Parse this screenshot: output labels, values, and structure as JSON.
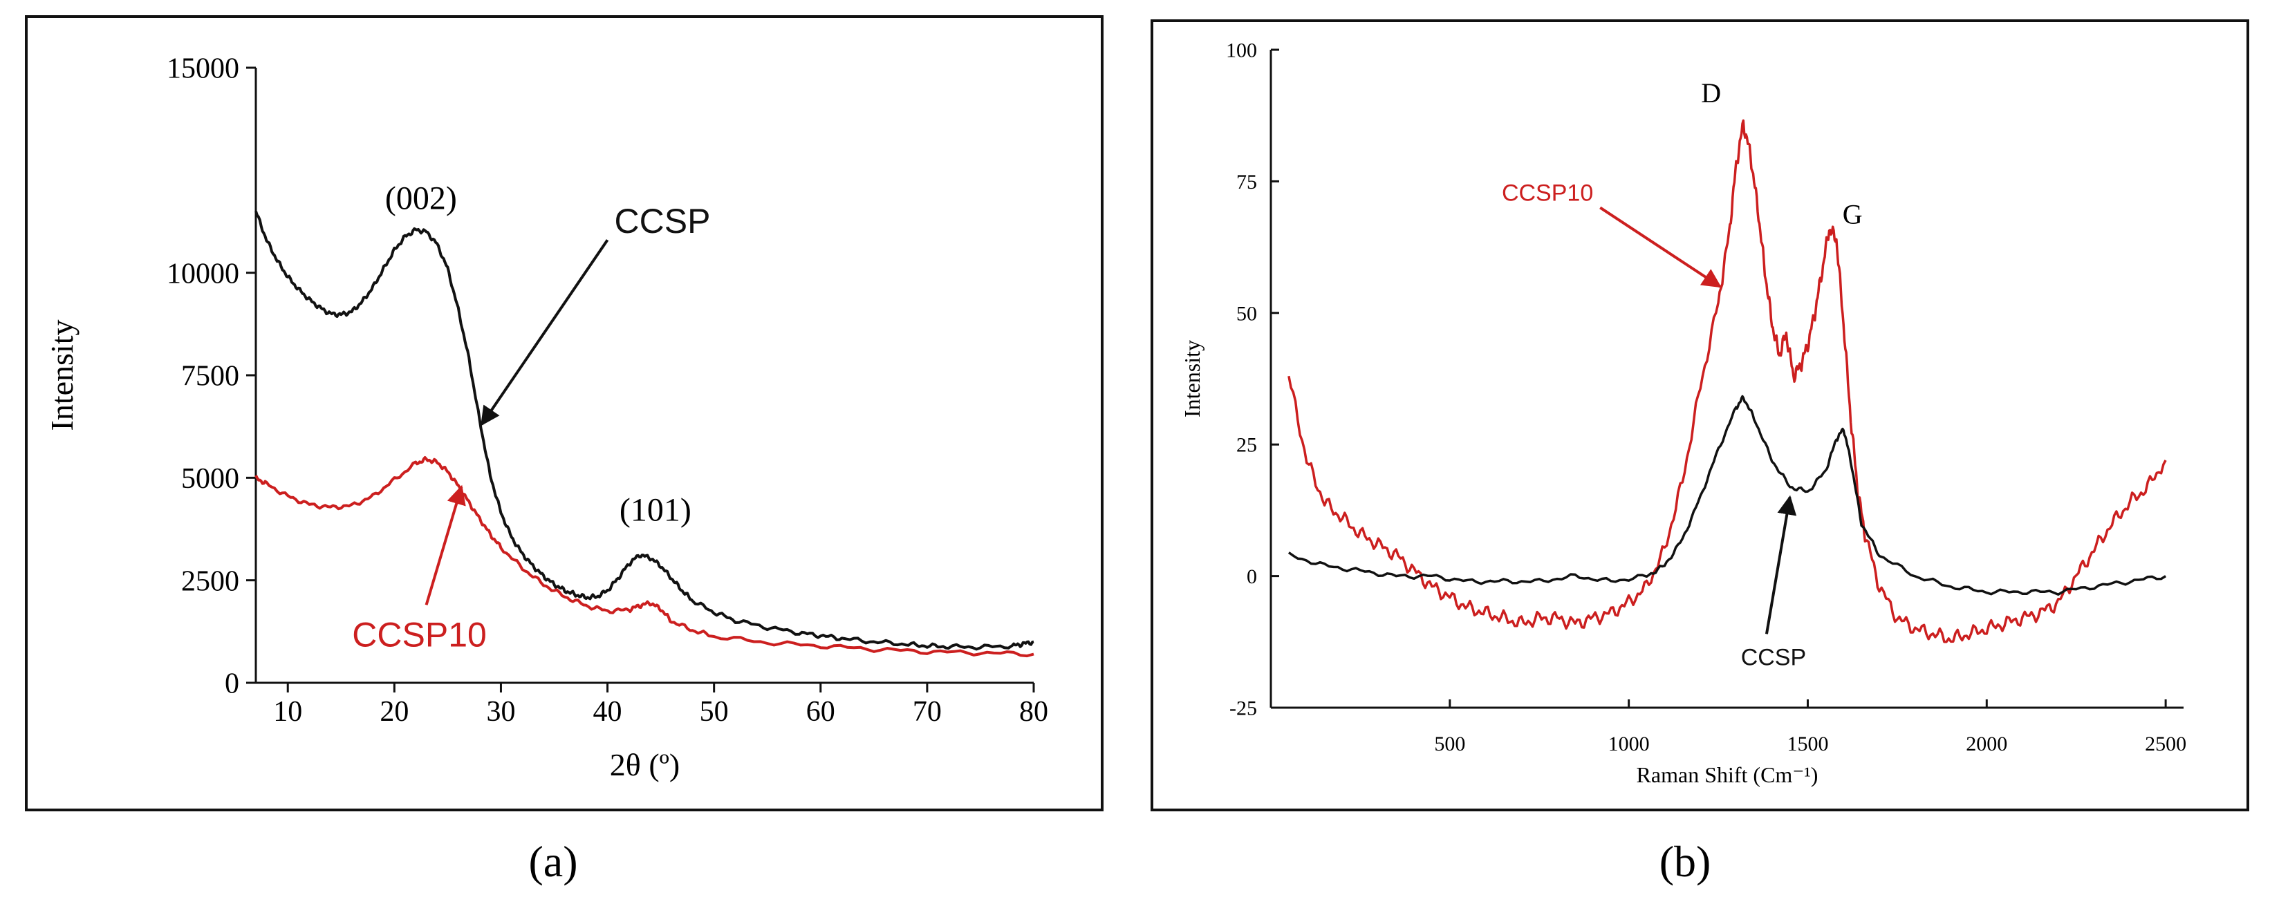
{
  "panels": [
    {
      "caption": "(a)",
      "colors": {
        "series1": "#111111",
        "series2": "#cc1f1f",
        "axis": "#111111"
      },
      "chart_data": {
        "type": "line",
        "title": "",
        "xlabel": "2θ (º)",
        "ylabel": "Intensity",
        "xlim": [
          7,
          80
        ],
        "ylim": [
          0,
          15000
        ],
        "xticks": [
          10,
          20,
          30,
          40,
          50,
          60,
          70,
          80
        ],
        "yticks": [
          0,
          2500,
          5000,
          7500,
          10000,
          15000
        ],
        "series": [
          {
            "name": "CCSP",
            "x": [
              7,
              8,
              9,
              10,
              11,
              12,
              13,
              14,
              15,
              16,
              17,
              18,
              19,
              20,
              21,
              22,
              23,
              24,
              25,
              26,
              27,
              28,
              29,
              30,
              31,
              32,
              33,
              34,
              35,
              36,
              37,
              38,
              39,
              40,
              41,
              42,
              43,
              44,
              45,
              46,
              47,
              48,
              50,
              52,
              55,
              58,
              60,
              62,
              65,
              68,
              70,
              72,
              75,
              78,
              79,
              80
            ],
            "y": [
              11500,
              10800,
              10300,
              9900,
              9600,
              9350,
              9150,
              9000,
              8980,
              9050,
              9300,
              9650,
              10100,
              10550,
              10880,
              11050,
              11000,
              10700,
              10100,
              9100,
              7900,
              6400,
              5050,
              4150,
              3550,
              3150,
              2850,
              2600,
              2400,
              2250,
              2150,
              2080,
              2100,
              2250,
              2550,
              2900,
              3120,
              3050,
              2850,
              2550,
              2250,
              2000,
              1720,
              1520,
              1350,
              1220,
              1150,
              1080,
              1000,
              940,
              900,
              880,
              870,
              900,
              950,
              1000
            ]
          },
          {
            "name": "CCSP10",
            "x": [
              7,
              8,
              10,
              12,
              14,
              16,
              18,
              20,
              22,
              23,
              24,
              25,
              26,
              27,
              28,
              29,
              30,
              32,
              34,
              36,
              38,
              40,
              42,
              43,
              44,
              45,
              46,
              48,
              50,
              55,
              60,
              65,
              70,
              75,
              80
            ],
            "y": [
              5000,
              4850,
              4550,
              4350,
              4280,
              4320,
              4550,
              4950,
              5350,
              5450,
              5380,
              5150,
              4800,
              4400,
              4000,
              3620,
              3300,
              2800,
              2400,
              2100,
              1880,
              1750,
              1780,
              1880,
              1950,
              1800,
              1500,
              1280,
              1130,
              980,
              900,
              820,
              760,
              730,
              700
            ]
          }
        ],
        "annotations": [
          {
            "text": "(002)",
            "x": 22.5,
            "y": 11550
          },
          {
            "text": "(101)",
            "x": 44.5,
            "y": 3950
          },
          {
            "text": "CCSP",
            "label_x": 40,
            "label_y": 10800,
            "point_x": 28.2,
            "point_y": 6300,
            "series": "CCSP"
          },
          {
            "text": "CCSP10",
            "label_x": 23,
            "label_y": 1900,
            "point_x": 26.3,
            "point_y": 4780,
            "series": "CCSP10"
          }
        ]
      }
    },
    {
      "caption": "(b)",
      "colors": {
        "series1": "#111111",
        "series2": "#cc1f1f",
        "axis": "#111111"
      },
      "chart_data": {
        "type": "line",
        "title": "",
        "xlabel": "Raman Shift (Cm⁻¹)",
        "ylabel": "Intensity",
        "xlim": [
          0,
          2550
        ],
        "ylim": [
          -25,
          100
        ],
        "xticks": [
          500,
          1000,
          1500,
          2000,
          2500
        ],
        "yticks": [
          -25,
          0,
          25,
          50,
          75,
          100
        ],
        "series": [
          {
            "name": "CCSP10",
            "x": [
              50,
              100,
              150,
              200,
              250,
              300,
              350,
              400,
              450,
              500,
              550,
              600,
              650,
              700,
              750,
              800,
              850,
              900,
              950,
              1000,
              1050,
              1100,
              1150,
              1200,
              1250,
              1280,
              1300,
              1320,
              1340,
              1360,
              1380,
              1400,
              1420,
              1440,
              1460,
              1480,
              1500,
              1520,
              1540,
              1560,
              1580,
              1600,
              1620,
              1640,
              1660,
              1700,
              1750,
              1800,
              1850,
              1900,
              1950,
              2000,
              2050,
              2100,
              2150,
              2200,
              2250,
              2300,
              2350,
              2400,
              2450,
              2500
            ],
            "y": [
              38,
              22,
              14,
              11,
              8,
              6,
              4,
              1,
              -2,
              -4,
              -6,
              -7,
              -8,
              -9,
              -8,
              -8,
              -9,
              -8,
              -7,
              -5,
              -2,
              5,
              18,
              36,
              52,
              65,
              78,
              86,
              80,
              70,
              58,
              48,
              42,
              46,
              38,
              40,
              44,
              50,
              58,
              66,
              64,
              48,
              30,
              16,
              8,
              -2,
              -8,
              -10,
              -11,
              -12,
              -11,
              -10,
              -9,
              -8,
              -7,
              -5,
              0,
              5,
              10,
              14,
              17,
              22
            ]
          },
          {
            "name": "CCSP",
            "x": [
              50,
              150,
              250,
              350,
              450,
              550,
              650,
              750,
              850,
              950,
              1050,
              1100,
              1150,
              1200,
              1250,
              1300,
              1320,
              1350,
              1400,
              1450,
              1500,
              1550,
              1580,
              1600,
              1620,
              1650,
              1700,
              1800,
              1900,
              2000,
              2100,
              2200,
              2300,
              2400,
              2500
            ],
            "y": [
              4,
              2,
              1,
              0,
              0,
              -1,
              -1,
              -1,
              0,
              -1,
              0,
              2,
              7,
              15,
              24,
              32,
              34,
              30,
              22,
              17,
              16,
              20,
              26,
              28,
              22,
              10,
              4,
              0,
              -2,
              -3,
              -3,
              -3,
              -2,
              -1,
              0
            ]
          }
        ],
        "annotations": [
          {
            "text": "D",
            "x": 1230,
            "y": 90
          },
          {
            "text": "G",
            "x": 1625,
            "y": 67
          },
          {
            "text": "CCSP10",
            "label_x": 920,
            "label_y": 70,
            "point_x": 1255,
            "point_y": 55,
            "series": "CCSP10"
          },
          {
            "text": "CCSP",
            "label_x": 1385,
            "label_y": -11,
            "point_x": 1450,
            "point_y": 15,
            "series": "CCSP"
          }
        ]
      }
    }
  ]
}
